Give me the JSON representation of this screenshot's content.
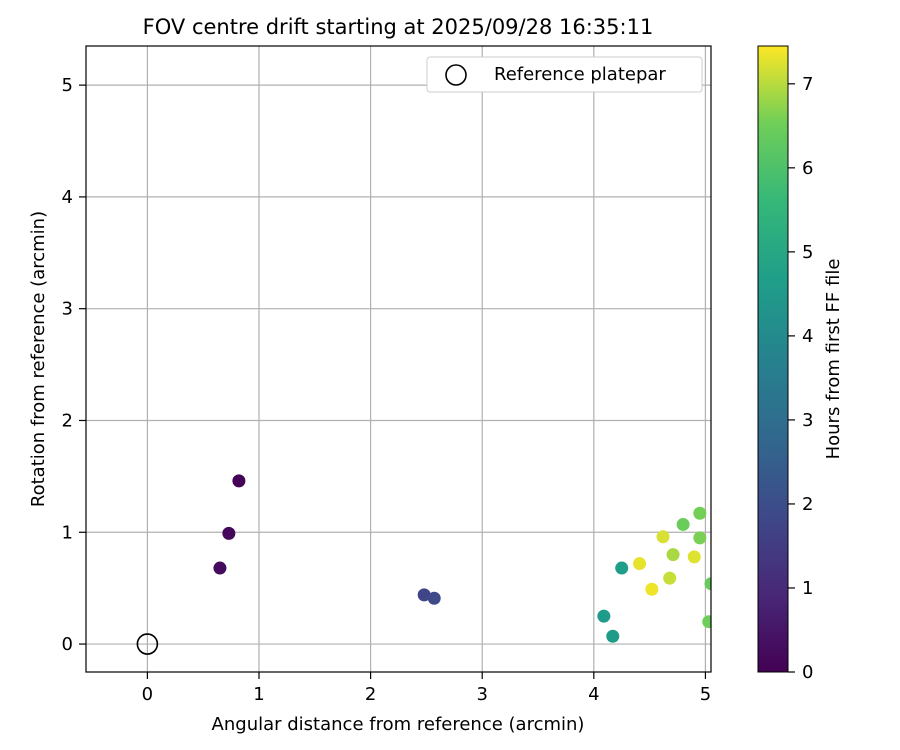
{
  "chart_data": {
    "type": "scatter",
    "title": "FOV centre drift starting at 2025/09/28 16:35:11",
    "xlabel": "Angular distance from reference (arcmin)",
    "ylabel": "Rotation from reference (arcmin)",
    "xlim": [
      -0.55,
      5.05
    ],
    "ylim": [
      -0.25,
      5.35
    ],
    "xticks": [
      0,
      1,
      2,
      3,
      4,
      5
    ],
    "yticks": [
      0,
      1,
      2,
      3,
      4,
      5
    ],
    "grid": true,
    "legend": {
      "placement": "top-right",
      "entries": [
        "Reference platepar"
      ]
    },
    "reference": {
      "x": 0,
      "y": 0,
      "label": "Reference platepar",
      "marker": "open-circle"
    },
    "colorbar": {
      "label": "Hours from first FF file",
      "range": [
        0,
        7.45
      ],
      "ticks": [
        0,
        1,
        2,
        3,
        4,
        5,
        6,
        7
      ],
      "colormap": "viridis"
    },
    "points": [
      {
        "x": 0.82,
        "y": 1.46,
        "hours": 0.05
      },
      {
        "x": 0.73,
        "y": 0.99,
        "hours": 0.15
      },
      {
        "x": 0.65,
        "y": 0.68,
        "hours": 0.25
      },
      {
        "x": 2.48,
        "y": 0.44,
        "hours": 1.75
      },
      {
        "x": 2.57,
        "y": 0.41,
        "hours": 1.85
      },
      {
        "x": 4.09,
        "y": 0.25,
        "hours": 4.55
      },
      {
        "x": 4.17,
        "y": 0.07,
        "hours": 4.6
      },
      {
        "x": 4.25,
        "y": 0.68,
        "hours": 4.65
      },
      {
        "x": 5.05,
        "y": 0.54,
        "hours": 6.4
      },
      {
        "x": 5.03,
        "y": 0.2,
        "hours": 6.5
      },
      {
        "x": 4.8,
        "y": 1.07,
        "hours": 6.45
      },
      {
        "x": 4.95,
        "y": 1.17,
        "hours": 6.55
      },
      {
        "x": 4.95,
        "y": 0.95,
        "hours": 6.6
      },
      {
        "x": 4.71,
        "y": 0.8,
        "hours": 6.9
      },
      {
        "x": 4.62,
        "y": 0.96,
        "hours": 7.2
      },
      {
        "x": 4.41,
        "y": 0.72,
        "hours": 7.3
      },
      {
        "x": 4.9,
        "y": 0.78,
        "hours": 7.25
      },
      {
        "x": 4.68,
        "y": 0.59,
        "hours": 7.1
      },
      {
        "x": 4.52,
        "y": 0.49,
        "hours": 7.35
      }
    ]
  }
}
